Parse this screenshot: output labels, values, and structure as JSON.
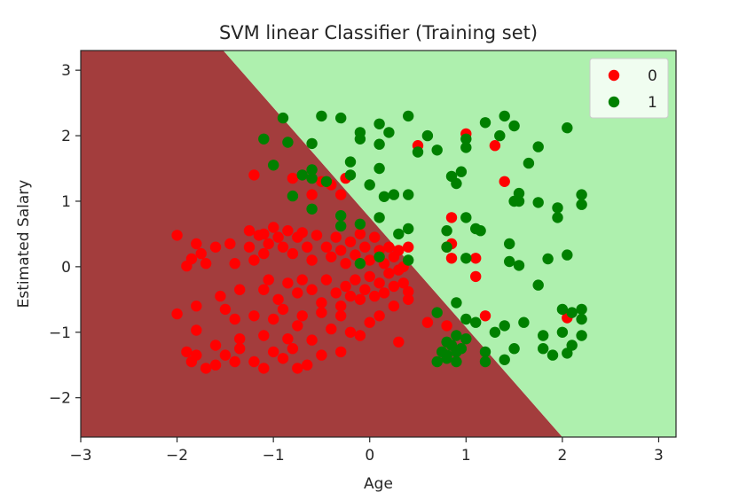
{
  "chart_data": {
    "type": "scatter",
    "title": "SVM linear Classifier (Training set)",
    "xlabel": "Age",
    "ylabel": "Estimated Salary",
    "xlim": [
      -3.0,
      3.18
    ],
    "ylim": [
      -2.6,
      3.3
    ],
    "x_ticks": [
      -3,
      -2,
      -1,
      0,
      1,
      2,
      3
    ],
    "x_tick_labels": [
      "−3",
      "−2",
      "−1",
      "0",
      "1",
      "2",
      "3"
    ],
    "y_ticks": [
      -2,
      -1,
      0,
      1,
      2,
      3
    ],
    "y_tick_labels": [
      "−2",
      "−1",
      "0",
      "1",
      "2",
      "3"
    ],
    "grid": false,
    "legend_position": "top-right",
    "decision_boundary": {
      "line_points": [
        [
          -1.52,
          3.3
        ],
        [
          2.0,
          -2.6
        ]
      ],
      "region_left_color": "#a33d3d",
      "region_right_color": "#aef0ae"
    },
    "series": [
      {
        "name": "0",
        "color": "#ff0000",
        "points": [
          [
            -2.0,
            0.48
          ],
          [
            -1.9,
            0.01
          ],
          [
            -1.85,
            0.12
          ],
          [
            -1.8,
            0.35
          ],
          [
            -1.75,
            0.2
          ],
          [
            -1.7,
            0.05
          ],
          [
            -1.6,
            0.3
          ],
          [
            -1.55,
            -0.45
          ],
          [
            -1.45,
            0.35
          ],
          [
            -1.4,
            0.05
          ],
          [
            -1.35,
            -0.35
          ],
          [
            -1.25,
            0.55
          ],
          [
            -1.25,
            0.3
          ],
          [
            -1.2,
            0.1
          ],
          [
            -1.15,
            0.48
          ],
          [
            -1.1,
            0.5
          ],
          [
            -1.1,
            0.2
          ],
          [
            -1.05,
            0.35
          ],
          [
            -1.0,
            0.6
          ],
          [
            -0.95,
            0.45
          ],
          [
            -0.9,
            0.3
          ],
          [
            -0.85,
            0.55
          ],
          [
            -0.8,
            0.2
          ],
          [
            -0.75,
            0.45
          ],
          [
            -0.7,
            0.52
          ],
          [
            -0.65,
            0.3
          ],
          [
            -0.6,
            0.1
          ],
          [
            -0.55,
            0.48
          ],
          [
            -0.45,
            0.3
          ],
          [
            -0.4,
            0.15
          ],
          [
            -0.35,
            0.45
          ],
          [
            -0.3,
            0.25
          ],
          [
            -0.25,
            0.05
          ],
          [
            -0.2,
            0.38
          ],
          [
            -0.15,
            0.18
          ],
          [
            -0.1,
            0.5
          ],
          [
            -0.05,
            0.3
          ],
          [
            0.0,
            0.1
          ],
          [
            0.05,
            0.45
          ],
          [
            0.1,
            0.25
          ],
          [
            0.15,
            0.05
          ],
          [
            0.2,
            0.3
          ],
          [
            0.25,
            0.15
          ],
          [
            0.3,
            0.25
          ],
          [
            0.35,
            0.0
          ],
          [
            0.4,
            0.3
          ],
          [
            -1.1,
            -0.35
          ],
          [
            -1.05,
            -0.2
          ],
          [
            -0.95,
            -0.5
          ],
          [
            -0.85,
            -0.25
          ],
          [
            -0.75,
            -0.4
          ],
          [
            -0.7,
            -0.2
          ],
          [
            -0.6,
            -0.35
          ],
          [
            -0.5,
            -0.55
          ],
          [
            -0.45,
            -0.2
          ],
          [
            -0.35,
            -0.4
          ],
          [
            -0.3,
            -0.6
          ],
          [
            -0.25,
            -0.3
          ],
          [
            -0.2,
            -0.45
          ],
          [
            -0.15,
            -0.2
          ],
          [
            -0.1,
            -0.5
          ],
          [
            -0.05,
            -0.35
          ],
          [
            0.0,
            -0.15
          ],
          [
            0.05,
            -0.45
          ],
          [
            0.1,
            -0.25
          ],
          [
            0.15,
            -0.4
          ],
          [
            0.2,
            -0.1
          ],
          [
            0.25,
            -0.3
          ],
          [
            0.3,
            -0.05
          ],
          [
            0.35,
            -0.25
          ],
          [
            0.4,
            -0.38
          ],
          [
            -2.0,
            -0.72
          ],
          [
            -1.8,
            -0.6
          ],
          [
            -1.8,
            -0.97
          ],
          [
            -1.6,
            -1.2
          ],
          [
            -1.5,
            -0.65
          ],
          [
            -1.4,
            -0.8
          ],
          [
            -1.35,
            -1.1
          ],
          [
            -1.2,
            -0.75
          ],
          [
            -1.1,
            -1.05
          ],
          [
            -1.0,
            -0.8
          ],
          [
            -0.9,
            -0.65
          ],
          [
            -0.85,
            -1.1
          ],
          [
            -0.75,
            -0.9
          ],
          [
            -0.7,
            -0.75
          ],
          [
            -0.5,
            -0.7
          ],
          [
            -0.4,
            -0.95
          ],
          [
            -0.3,
            -0.75
          ],
          [
            -0.2,
            -1.0
          ],
          [
            -0.1,
            -1.05
          ],
          [
            0.0,
            -0.85
          ],
          [
            0.1,
            -0.75
          ],
          [
            0.25,
            -0.6
          ],
          [
            0.4,
            -0.5
          ],
          [
            0.6,
            -0.85
          ],
          [
            -1.9,
            -1.3
          ],
          [
            -1.85,
            -1.45
          ],
          [
            -1.8,
            -1.35
          ],
          [
            -1.7,
            -1.55
          ],
          [
            -1.6,
            -1.5
          ],
          [
            -1.5,
            -1.35
          ],
          [
            -1.4,
            -1.45
          ],
          [
            -1.35,
            -1.25
          ],
          [
            -1.2,
            -1.45
          ],
          [
            -1.1,
            -1.55
          ],
          [
            -1.0,
            -1.3
          ],
          [
            -0.9,
            -1.4
          ],
          [
            -0.8,
            -1.25
          ],
          [
            -0.75,
            -1.55
          ],
          [
            -0.65,
            -1.5
          ],
          [
            -0.6,
            -1.12
          ],
          [
            -0.5,
            -1.35
          ],
          [
            -0.3,
            -1.3
          ],
          [
            0.3,
            -1.15
          ],
          [
            0.8,
            -0.9
          ],
          [
            -1.2,
            1.4
          ],
          [
            -0.8,
            1.35
          ],
          [
            -0.6,
            1.1
          ],
          [
            -0.5,
            1.3
          ],
          [
            -0.4,
            1.25
          ],
          [
            -0.3,
            1.1
          ],
          [
            -0.25,
            1.35
          ],
          [
            0.5,
            1.85
          ],
          [
            0.8,
            0.3
          ],
          [
            0.85,
            0.75
          ],
          [
            0.85,
            0.13
          ],
          [
            0.85,
            0.35
          ],
          [
            1.0,
            2.03
          ],
          [
            1.1,
            0.13
          ],
          [
            1.1,
            -0.15
          ],
          [
            1.2,
            -0.75
          ],
          [
            1.3,
            1.85
          ],
          [
            1.4,
            1.3
          ],
          [
            2.05,
            -0.78
          ]
        ]
      },
      {
        "name": "1",
        "color": "#008000",
        "points": [
          [
            -0.9,
            2.27
          ],
          [
            -1.1,
            1.95
          ],
          [
            -0.85,
            1.9
          ],
          [
            -1.0,
            1.55
          ],
          [
            -0.7,
            1.4
          ],
          [
            -0.6,
            1.35
          ],
          [
            -0.6,
            1.48
          ],
          [
            -0.5,
            2.3
          ],
          [
            -0.3,
            2.27
          ],
          [
            -0.1,
            2.05
          ],
          [
            0.1,
            2.18
          ],
          [
            0.4,
            2.3
          ],
          [
            -0.1,
            1.95
          ],
          [
            0.1,
            1.87
          ],
          [
            0.2,
            2.05
          ],
          [
            0.5,
            1.75
          ],
          [
            0.6,
            2.0
          ],
          [
            -0.6,
            1.88
          ],
          [
            -0.45,
            1.3
          ],
          [
            -0.2,
            1.6
          ],
          [
            -0.2,
            1.4
          ],
          [
            0.0,
            1.25
          ],
          [
            0.1,
            1.5
          ],
          [
            0.15,
            1.07
          ],
          [
            0.25,
            1.1
          ],
          [
            0.4,
            1.1
          ],
          [
            -0.8,
            1.08
          ],
          [
            -0.6,
            0.88
          ],
          [
            -0.3,
            0.78
          ],
          [
            -0.3,
            0.62
          ],
          [
            -0.1,
            0.65
          ],
          [
            0.1,
            0.75
          ],
          [
            0.3,
            0.5
          ],
          [
            0.4,
            0.58
          ],
          [
            0.8,
            0.55
          ],
          [
            0.8,
            0.3
          ],
          [
            0.7,
            1.78
          ],
          [
            0.85,
            1.38
          ],
          [
            0.9,
            1.27
          ],
          [
            0.95,
            1.45
          ],
          [
            1.0,
            1.95
          ],
          [
            1.0,
            1.82
          ],
          [
            1.15,
            0.55
          ],
          [
            1.0,
            0.75
          ],
          [
            1.1,
            0.58
          ],
          [
            1.0,
            0.13
          ],
          [
            -0.1,
            0.05
          ],
          [
            0.1,
            0.15
          ],
          [
            0.4,
            0.1
          ],
          [
            0.7,
            -0.7
          ],
          [
            0.9,
            -0.55
          ],
          [
            1.0,
            -0.8
          ],
          [
            1.1,
            -0.85
          ],
          [
            1.3,
            -1.0
          ],
          [
            1.4,
            -0.9
          ],
          [
            1.6,
            -0.85
          ],
          [
            1.8,
            -1.05
          ],
          [
            2.0,
            -1.0
          ],
          [
            2.0,
            -0.65
          ],
          [
            2.1,
            -0.7
          ],
          [
            2.2,
            -0.65
          ],
          [
            2.2,
            -0.8
          ],
          [
            2.1,
            -1.2
          ],
          [
            2.2,
            -1.05
          ],
          [
            1.8,
            -1.25
          ],
          [
            1.5,
            -1.25
          ],
          [
            1.4,
            -1.42
          ],
          [
            1.2,
            -1.3
          ],
          [
            1.0,
            -1.1
          ],
          [
            0.9,
            -1.05
          ],
          [
            0.8,
            -1.15
          ],
          [
            0.75,
            -1.3
          ],
          [
            0.7,
            -1.45
          ],
          [
            0.8,
            -1.4
          ],
          [
            0.9,
            -1.3
          ],
          [
            0.95,
            -1.25
          ],
          [
            1.2,
            -1.45
          ],
          [
            0.85,
            -1.2
          ],
          [
            0.8,
            -1.35
          ],
          [
            0.9,
            -1.45
          ],
          [
            1.9,
            -1.35
          ],
          [
            2.05,
            -1.32
          ],
          [
            1.35,
            2.0
          ],
          [
            1.2,
            2.2
          ],
          [
            1.4,
            2.3
          ],
          [
            1.5,
            2.15
          ],
          [
            1.65,
            1.58
          ],
          [
            1.75,
            1.83
          ],
          [
            2.05,
            2.12
          ],
          [
            1.5,
            1.0
          ],
          [
            1.55,
            1.12
          ],
          [
            1.55,
            1.0
          ],
          [
            1.75,
            0.98
          ],
          [
            1.95,
            0.9
          ],
          [
            2.2,
            1.1
          ],
          [
            2.2,
            0.95
          ],
          [
            1.45,
            0.35
          ],
          [
            1.45,
            0.08
          ],
          [
            1.55,
            0.02
          ],
          [
            1.85,
            0.12
          ],
          [
            2.05,
            0.18
          ],
          [
            1.75,
            -0.28
          ],
          [
            1.95,
            0.75
          ]
        ]
      }
    ]
  }
}
